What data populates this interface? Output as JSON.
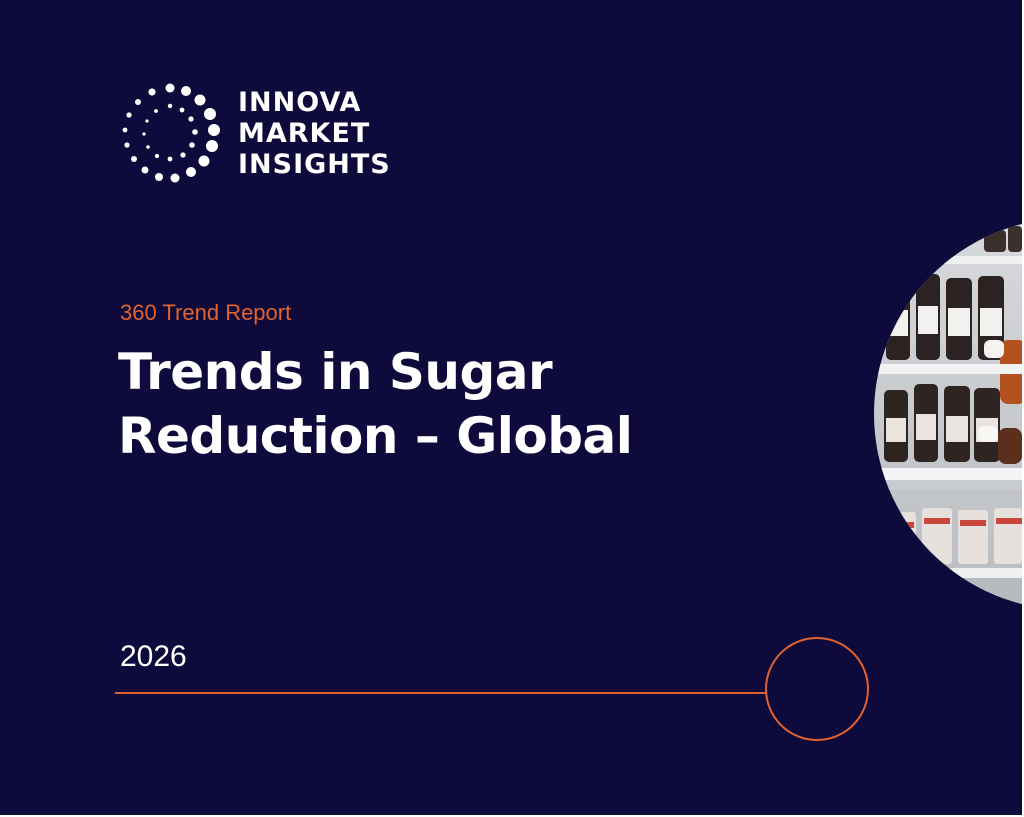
{
  "brand": {
    "logo_lines": [
      "INNOVA",
      "MARKET",
      "INSIGHTS"
    ]
  },
  "report": {
    "label": "360 Trend Report",
    "title_lines": [
      "Trends in Sugar",
      "Reduction – Global"
    ],
    "year": "2026"
  },
  "photo": {
    "subject": "supermarket shelf with bottled sauces"
  },
  "colors": {
    "background": "#0f0a3c",
    "accent": "#e0632f",
    "text": "#ffffff"
  }
}
